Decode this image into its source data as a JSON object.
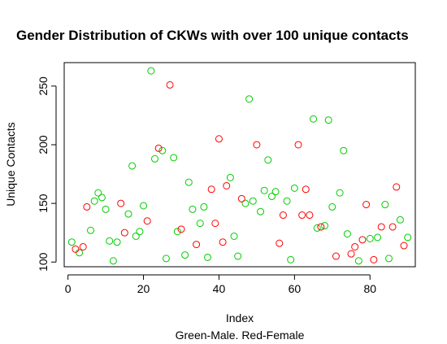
{
  "chart_data": {
    "type": "scatter",
    "title": "Gender Distribution of CKWs with over 100 unique contacts",
    "xlabel": "Index",
    "subtitle": "Green-Male. Red-Female",
    "ylabel": "Unique Contacts",
    "xlim": [
      -1,
      92
    ],
    "ylim": [
      96,
      270
    ],
    "xticks": [
      0,
      20,
      40,
      60,
      80
    ],
    "yticks": [
      100,
      150,
      200,
      250
    ],
    "grid": false,
    "colors": {
      "male": "#00cd00",
      "female": "#ff0000"
    },
    "series": [
      {
        "key": "male",
        "points": [
          {
            "x": 1,
            "y": 117
          },
          {
            "x": 3,
            "y": 108
          },
          {
            "x": 6,
            "y": 127
          },
          {
            "x": 7,
            "y": 152
          },
          {
            "x": 8,
            "y": 159
          },
          {
            "x": 9,
            "y": 155
          },
          {
            "x": 10,
            "y": 145
          },
          {
            "x": 11,
            "y": 118
          },
          {
            "x": 12,
            "y": 101
          },
          {
            "x": 13,
            "y": 117
          },
          {
            "x": 16,
            "y": 141
          },
          {
            "x": 17,
            "y": 182
          },
          {
            "x": 18,
            "y": 122
          },
          {
            "x": 19,
            "y": 126
          },
          {
            "x": 20,
            "y": 148
          },
          {
            "x": 22,
            "y": 263
          },
          {
            "x": 23,
            "y": 188
          },
          {
            "x": 25,
            "y": 195
          },
          {
            "x": 26,
            "y": 103
          },
          {
            "x": 28,
            "y": 189
          },
          {
            "x": 29,
            "y": 126
          },
          {
            "x": 31,
            "y": 106
          },
          {
            "x": 32,
            "y": 168
          },
          {
            "x": 33,
            "y": 145
          },
          {
            "x": 35,
            "y": 133
          },
          {
            "x": 36,
            "y": 147
          },
          {
            "x": 37,
            "y": 104
          },
          {
            "x": 43,
            "y": 172
          },
          {
            "x": 44,
            "y": 122
          },
          {
            "x": 45,
            "y": 105
          },
          {
            "x": 47,
            "y": 150
          },
          {
            "x": 48,
            "y": 239
          },
          {
            "x": 49,
            "y": 152
          },
          {
            "x": 51,
            "y": 143
          },
          {
            "x": 52,
            "y": 161
          },
          {
            "x": 53,
            "y": 187
          },
          {
            "x": 54,
            "y": 156
          },
          {
            "x": 55,
            "y": 160
          },
          {
            "x": 58,
            "y": 152
          },
          {
            "x": 59,
            "y": 102
          },
          {
            "x": 60,
            "y": 163
          },
          {
            "x": 65,
            "y": 222
          },
          {
            "x": 66,
            "y": 129
          },
          {
            "x": 68,
            "y": 131
          },
          {
            "x": 69,
            "y": 221
          },
          {
            "x": 70,
            "y": 147
          },
          {
            "x": 72,
            "y": 159
          },
          {
            "x": 73,
            "y": 195
          },
          {
            "x": 74,
            "y": 124
          },
          {
            "x": 77,
            "y": 101
          },
          {
            "x": 80,
            "y": 120
          },
          {
            "x": 82,
            "y": 121
          },
          {
            "x": 84,
            "y": 149
          },
          {
            "x": 85,
            "y": 103
          },
          {
            "x": 88,
            "y": 136
          },
          {
            "x": 90,
            "y": 121
          }
        ]
      },
      {
        "key": "female",
        "points": [
          {
            "x": 2,
            "y": 111
          },
          {
            "x": 4,
            "y": 113
          },
          {
            "x": 5,
            "y": 147
          },
          {
            "x": 14,
            "y": 150
          },
          {
            "x": 15,
            "y": 125
          },
          {
            "x": 21,
            "y": 135
          },
          {
            "x": 24,
            "y": 197
          },
          {
            "x": 27,
            "y": 251
          },
          {
            "x": 30,
            "y": 128
          },
          {
            "x": 34,
            "y": 115
          },
          {
            "x": 38,
            "y": 162
          },
          {
            "x": 39,
            "y": 133
          },
          {
            "x": 40,
            "y": 205
          },
          {
            "x": 41,
            "y": 117
          },
          {
            "x": 42,
            "y": 165
          },
          {
            "x": 46,
            "y": 154
          },
          {
            "x": 50,
            "y": 200
          },
          {
            "x": 56,
            "y": 116
          },
          {
            "x": 57,
            "y": 140
          },
          {
            "x": 61,
            "y": 200
          },
          {
            "x": 62,
            "y": 140
          },
          {
            "x": 63,
            "y": 162
          },
          {
            "x": 64,
            "y": 140
          },
          {
            "x": 67,
            "y": 130
          },
          {
            "x": 71,
            "y": 105
          },
          {
            "x": 75,
            "y": 107
          },
          {
            "x": 76,
            "y": 113
          },
          {
            "x": 78,
            "y": 119
          },
          {
            "x": 79,
            "y": 149
          },
          {
            "x": 81,
            "y": 102
          },
          {
            "x": 83,
            "y": 130
          },
          {
            "x": 86,
            "y": 130
          },
          {
            "x": 87,
            "y": 164
          },
          {
            "x": 89,
            "y": 114
          }
        ]
      }
    ]
  }
}
